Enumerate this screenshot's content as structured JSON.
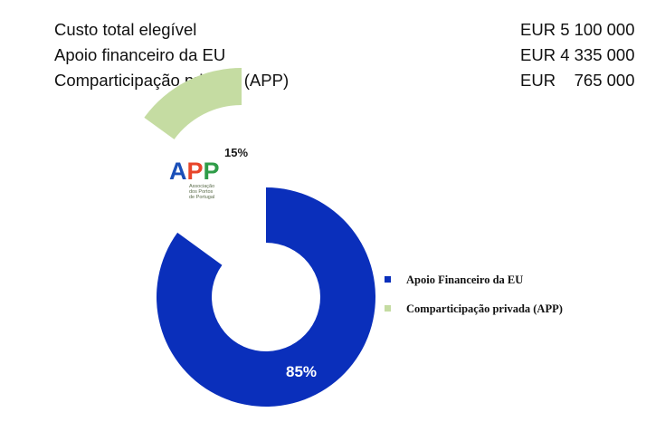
{
  "summary": {
    "rows": [
      {
        "label": "Custo total elegível",
        "value": "EUR 5 100 000"
      },
      {
        "label": "Apoio financeiro da EU",
        "value": "EUR 4 335 000"
      },
      {
        "label": "Comparticipação privada (APP)",
        "value": "EUR    765 000"
      }
    ]
  },
  "logo": {
    "letters": [
      "A",
      "P",
      "P"
    ],
    "letter_colors": [
      "#1a4fb8",
      "#e8452a",
      "#2f9c48"
    ],
    "subtitle_lines": [
      "Associação",
      "dos Portos",
      "de Portugal"
    ]
  },
  "chart_data": {
    "type": "pie",
    "style": "donut with exploded slice",
    "slices": [
      {
        "label": "Apoio Financeiro da EU",
        "value": 85,
        "display": "85%",
        "color": "#0a2fbb"
      },
      {
        "label": "Comparticipação privada (APP)",
        "value": 15,
        "display": "15%",
        "color": "#c5dca2"
      }
    ],
    "legend": {
      "placement": "right",
      "items": [
        "Apoio Financeiro da EU",
        "Comparticipação privada (APP)"
      ]
    }
  }
}
